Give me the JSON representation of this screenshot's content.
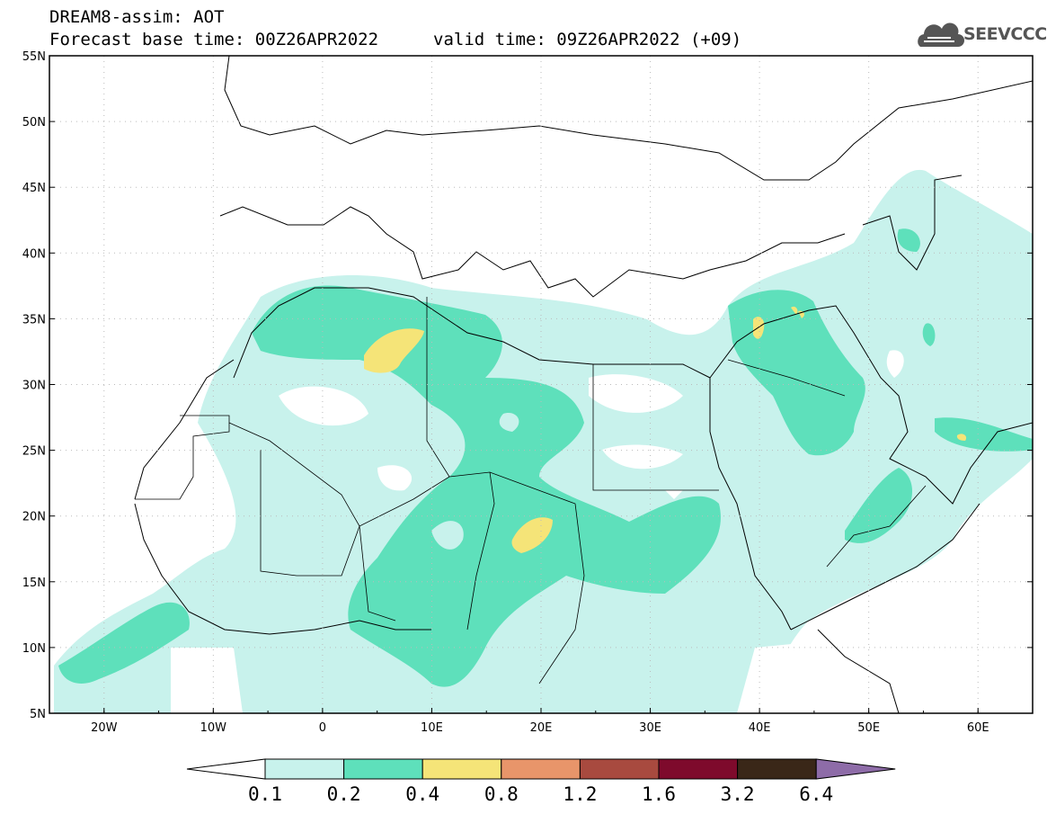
{
  "header": {
    "title": "DREAM8-assim: AOT",
    "base_time": "Forecast base time: 00Z26APR2022",
    "valid_time": "valid time: 09Z26APR2022 (+09)",
    "logo_text": "SEEVCCC"
  },
  "map": {
    "lon_ticks": [
      "20W",
      "10W",
      "0",
      "10E",
      "20E",
      "30E",
      "40E",
      "50E",
      "60E"
    ],
    "lat_ticks": [
      "55N",
      "50N",
      "45N",
      "40N",
      "35N",
      "30N",
      "25N",
      "20N",
      "15N",
      "10N",
      "5N"
    ],
    "lon_range": [
      -25,
      65
    ],
    "lat_range": [
      5,
      55
    ]
  },
  "colorbar": {
    "labels": [
      "0.1",
      "0.2",
      "0.4",
      "0.8",
      "1.2",
      "1.6",
      "3.2",
      "6.4"
    ],
    "colors": [
      "#ffffff",
      "#c8f2ec",
      "#5ee0bb",
      "#f5e478",
      "#e8956a",
      "#a84a3f",
      "#7e0a2c",
      "#3a2718",
      "#8e6ca8"
    ]
  }
}
